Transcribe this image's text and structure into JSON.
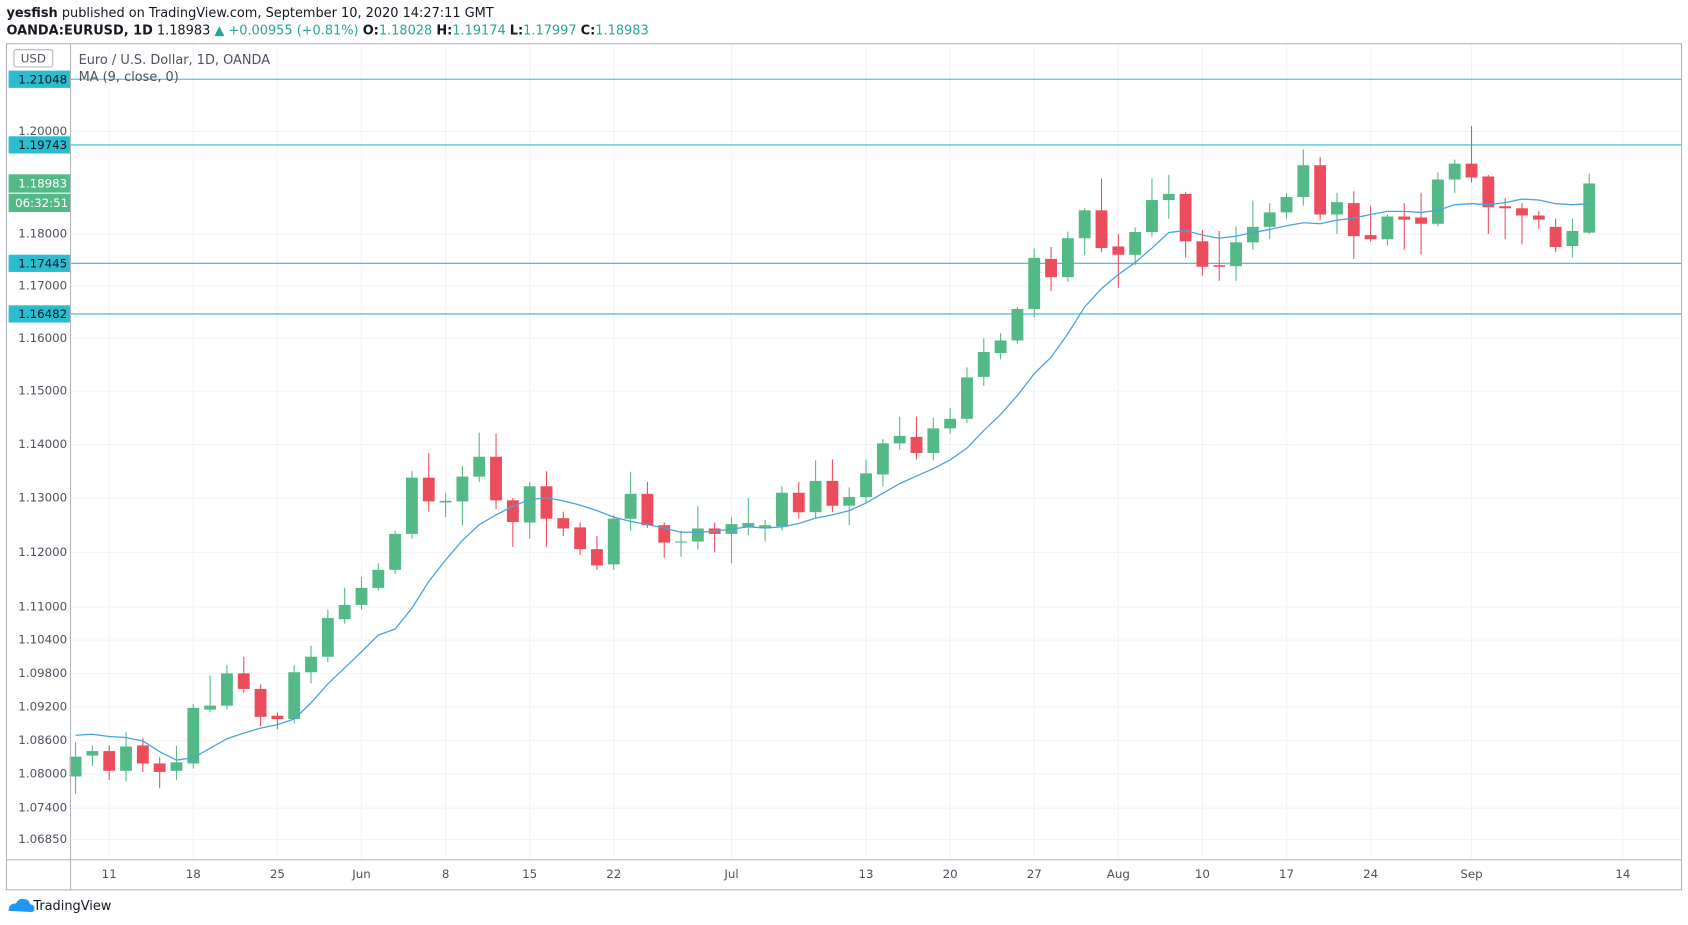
{
  "header": {
    "publisher": "yesfish",
    "published": "published on TradingView.com, September 10, 2020 14:27:11 GMT",
    "symbol": "OANDA:EURUSD, 1D",
    "price": "1.18983",
    "change": "▲ +0.00955 (+0.81%)",
    "ohlc": [
      {
        "key": "O:",
        "value": "1.18028"
      },
      {
        "key": "H:",
        "value": "1.19174"
      },
      {
        "key": "L:",
        "value": "1.17997"
      },
      {
        "key": "C:",
        "value": "1.18983"
      }
    ]
  },
  "chart_data": {
    "type": "candlestick",
    "title": "Euro / U.S. Dollar, 1D, OANDA",
    "currency": "USD",
    "categories": [
      null,
      null,
      "11",
      null,
      null,
      null,
      null,
      "18",
      null,
      null,
      null,
      null,
      "25",
      null,
      null,
      null,
      null,
      "Jun",
      null,
      null,
      null,
      null,
      "8",
      null,
      null,
      null,
      null,
      "15",
      null,
      null,
      null,
      null,
      "22",
      null,
      null,
      null,
      null,
      null,
      null,
      "Jul",
      null,
      null,
      null,
      null,
      null,
      null,
      null,
      "13",
      null,
      null,
      null,
      null,
      "20",
      null,
      null,
      null,
      null,
      "27",
      null,
      null,
      null,
      null,
      "Aug",
      null,
      null,
      null,
      null,
      "10",
      null,
      null,
      null,
      null,
      "17",
      null,
      null,
      null,
      null,
      "24",
      null,
      null,
      null,
      null,
      null,
      "Sep",
      null,
      null,
      null,
      null,
      null,
      null,
      null,
      null,
      "14"
    ],
    "open": [
      1.0796,
      1.0833,
      1.0841,
      1.0806,
      1.0851,
      1.0819,
      1.0806,
      1.0819,
      1.0915,
      1.0922,
      1.098,
      1.0952,
      1.0904,
      1.0898,
      1.0982,
      1.101,
      1.1078,
      1.1104,
      1.1135,
      1.1168,
      1.1234,
      1.1338,
      1.1292,
      1.1294,
      1.134,
      1.1377,
      1.1296,
      1.1255,
      1.1322,
      1.1263,
      1.1246,
      1.1206,
      1.1178,
      1.1262,
      1.1308,
      1.125,
      1.1218,
      1.122,
      1.1244,
      1.1234,
      1.1246,
      1.1244,
      1.1248,
      1.131,
      1.1274,
      1.1332,
      1.1286,
      1.1302,
      1.1344,
      1.1402,
      1.1414,
      1.1384,
      1.143,
      1.1448,
      1.1527,
      1.1572,
      1.1596,
      1.1656,
      1.1752,
      1.1717,
      1.1792,
      1.1846,
      1.1776,
      1.176,
      1.1804,
      1.1866,
      1.1878,
      1.1786,
      1.174,
      1.1738,
      1.1784,
      1.1814,
      1.1842,
      1.1872,
      1.1934,
      1.1838,
      1.186,
      1.1798,
      1.179,
      1.1834,
      1.1832,
      1.182,
      1.1906,
      1.1937,
      1.1912,
      1.1854,
      1.185,
      1.1836,
      1.1814,
      1.1777,
      1.18028,
      null,
      null
    ],
    "high": [
      1.0857,
      1.0851,
      1.0851,
      1.0875,
      1.0864,
      1.083,
      1.085,
      1.0925,
      1.0976,
      1.0995,
      1.101,
      1.096,
      1.091,
      1.0995,
      1.103,
      1.1095,
      1.1135,
      1.1155,
      1.118,
      1.124,
      1.135,
      1.1384,
      1.131,
      1.136,
      1.1422,
      1.142,
      1.13,
      1.133,
      1.135,
      1.1275,
      1.1255,
      1.123,
      1.1268,
      1.1349,
      1.133,
      1.1255,
      1.124,
      1.1285,
      1.1255,
      1.1265,
      1.13,
      1.126,
      1.1322,
      1.133,
      1.137,
      1.1372,
      1.132,
      1.1372,
      1.141,
      1.1452,
      1.1452,
      1.145,
      1.1468,
      1.1545,
      1.16,
      1.161,
      1.166,
      1.1772,
      1.1775,
      1.1805,
      1.185,
      1.1908,
      1.18,
      1.1813,
      1.1908,
      1.1915,
      1.1882,
      1.1808,
      1.1806,
      1.1815,
      1.1865,
      1.186,
      1.188,
      1.1965,
      1.195,
      1.188,
      1.1883,
      1.1855,
      1.1838,
      1.186,
      1.188,
      1.192,
      1.1945,
      1.2011,
      1.1915,
      1.187,
      1.186,
      1.1845,
      1.183,
      1.183,
      1.19174,
      null,
      null
    ],
    "low": [
      1.0765,
      1.0815,
      1.079,
      1.0787,
      1.0804,
      1.0775,
      1.079,
      1.081,
      1.091,
      1.0915,
      1.0945,
      1.0885,
      1.088,
      1.089,
      1.0962,
      1.1,
      1.107,
      1.1095,
      1.113,
      1.116,
      1.1225,
      1.1275,
      1.1265,
      1.125,
      1.133,
      1.128,
      1.121,
      1.1225,
      1.121,
      1.123,
      1.1195,
      1.1168,
      1.1168,
      1.124,
      1.1245,
      1.119,
      1.1192,
      1.1205,
      1.12,
      1.118,
      1.1232,
      1.122,
      1.124,
      1.1262,
      1.1262,
      1.1274,
      1.125,
      1.129,
      1.1322,
      1.139,
      1.1372,
      1.137,
      1.142,
      1.144,
      1.151,
      1.156,
      1.159,
      1.164,
      1.169,
      1.1708,
      1.176,
      1.1765,
      1.1696,
      1.174,
      1.1795,
      1.183,
      1.1755,
      1.172,
      1.171,
      1.171,
      1.177,
      1.179,
      1.183,
      1.1855,
      1.1828,
      1.18,
      1.1752,
      1.1785,
      1.1778,
      1.177,
      1.176,
      1.1815,
      1.188,
      1.19,
      1.18,
      1.179,
      1.178,
      1.181,
      1.1765,
      1.1755,
      1.17997,
      null,
      null
    ],
    "close": [
      1.0831,
      1.0841,
      1.0806,
      1.0849,
      1.0819,
      1.0804,
      1.0821,
      1.0918,
      1.0922,
      1.098,
      1.0952,
      1.0902,
      1.0898,
      1.0982,
      1.101,
      1.108,
      1.1104,
      1.1135,
      1.1168,
      1.1234,
      1.1338,
      1.1294,
      1.1295,
      1.134,
      1.1377,
      1.1296,
      1.1256,
      1.1322,
      1.1262,
      1.1244,
      1.1206,
      1.1176,
      1.1262,
      1.1308,
      1.125,
      1.1218,
      1.122,
      1.1244,
      1.1234,
      1.1252,
      1.1254,
      1.125,
      1.131,
      1.1274,
      1.1332,
      1.1286,
      1.1302,
      1.1346,
      1.1402,
      1.1416,
      1.1384,
      1.143,
      1.1448,
      1.1526,
      1.1574,
      1.1596,
      1.1656,
      1.1754,
      1.1717,
      1.1792,
      1.1846,
      1.1773,
      1.176,
      1.1804,
      1.1866,
      1.1878,
      1.1786,
      1.1737,
      1.1737,
      1.1784,
      1.1814,
      1.1842,
      1.1872,
      1.1934,
      1.1838,
      1.1862,
      1.1796,
      1.179,
      1.1834,
      1.1828,
      1.182,
      1.1906,
      1.1937,
      1.191,
      1.1852,
      1.185,
      1.1836,
      1.1828,
      1.1775,
      1.1806,
      1.18983,
      null,
      null
    ],
    "up_color": "#53b987",
    "down_color": "#eb4d5c",
    "series": [
      {
        "name": "MA (9, close, 0)",
        "color": "#4aa3df",
        "values": [
          1.0869,
          1.0871,
          1.0867,
          1.0865,
          1.0859,
          1.084,
          1.0825,
          1.0829,
          1.0846,
          1.0863,
          1.0873,
          1.0882,
          1.0888,
          1.0898,
          1.0927,
          1.0961,
          1.099,
          1.1019,
          1.1049,
          1.106,
          1.1098,
          1.1147,
          1.1186,
          1.1222,
          1.1251,
          1.1269,
          1.1285,
          1.1297,
          1.1301,
          1.1295,
          1.1287,
          1.1277,
          1.1265,
          1.1257,
          1.1251,
          1.1245,
          1.1237,
          1.1237,
          1.1239,
          1.1243,
          1.1247,
          1.1245,
          1.1247,
          1.1253,
          1.1263,
          1.1269,
          1.1277,
          1.1291,
          1.1309,
          1.1327,
          1.1341,
          1.1355,
          1.1371,
          1.1393,
          1.1426,
          1.1456,
          1.1492,
          1.1533,
          1.1564,
          1.1609,
          1.166,
          1.1695,
          1.1722,
          1.1745,
          1.1773,
          1.1803,
          1.1807,
          1.1798,
          1.1792,
          1.1796,
          1.1803,
          1.1809,
          1.1816,
          1.1822,
          1.182,
          1.1827,
          1.1831,
          1.1838,
          1.1844,
          1.1844,
          1.1842,
          1.1846,
          1.1857,
          1.1859,
          1.1857,
          1.1861,
          1.1868,
          1.1866,
          1.1859,
          1.1857,
          1.1859,
          null,
          null
        ]
      }
    ],
    "ylim": [
      1.06505,
      1.2173
    ],
    "log_scale": true,
    "yticks": [
      {
        "value": 1.0685,
        "label": "1.06850"
      },
      {
        "value": 1.074,
        "label": "1.07400"
      },
      {
        "value": 1.08,
        "label": "1.08000"
      },
      {
        "value": 1.086,
        "label": "1.08600"
      },
      {
        "value": 1.092,
        "label": "1.09200"
      },
      {
        "value": 1.098,
        "label": "1.09800"
      },
      {
        "value": 1.104,
        "label": "1.10400"
      },
      {
        "value": 1.11,
        "label": "1.11000"
      },
      {
        "value": 1.12,
        "label": "1.12000"
      },
      {
        "value": 1.13,
        "label": "1.13000"
      },
      {
        "value": 1.14,
        "label": "1.14000"
      },
      {
        "value": 1.15,
        "label": "1.15000"
      },
      {
        "value": 1.16,
        "label": "1.16000"
      },
      {
        "value": 1.17,
        "label": "1.17000"
      },
      {
        "value": 1.18,
        "label": "1.18000"
      },
      {
        "value": 1.2,
        "label": "1.20000"
      }
    ],
    "grid": true,
    "hlines": {
      "color": "#2bbcd0",
      "values": [
        1.21048,
        1.19743,
        1.17445,
        1.16482
      ]
    },
    "last_price": {
      "label": "1.18983",
      "countdown": "06:32:51"
    }
  },
  "footer": {
    "brand": "TradingView"
  }
}
